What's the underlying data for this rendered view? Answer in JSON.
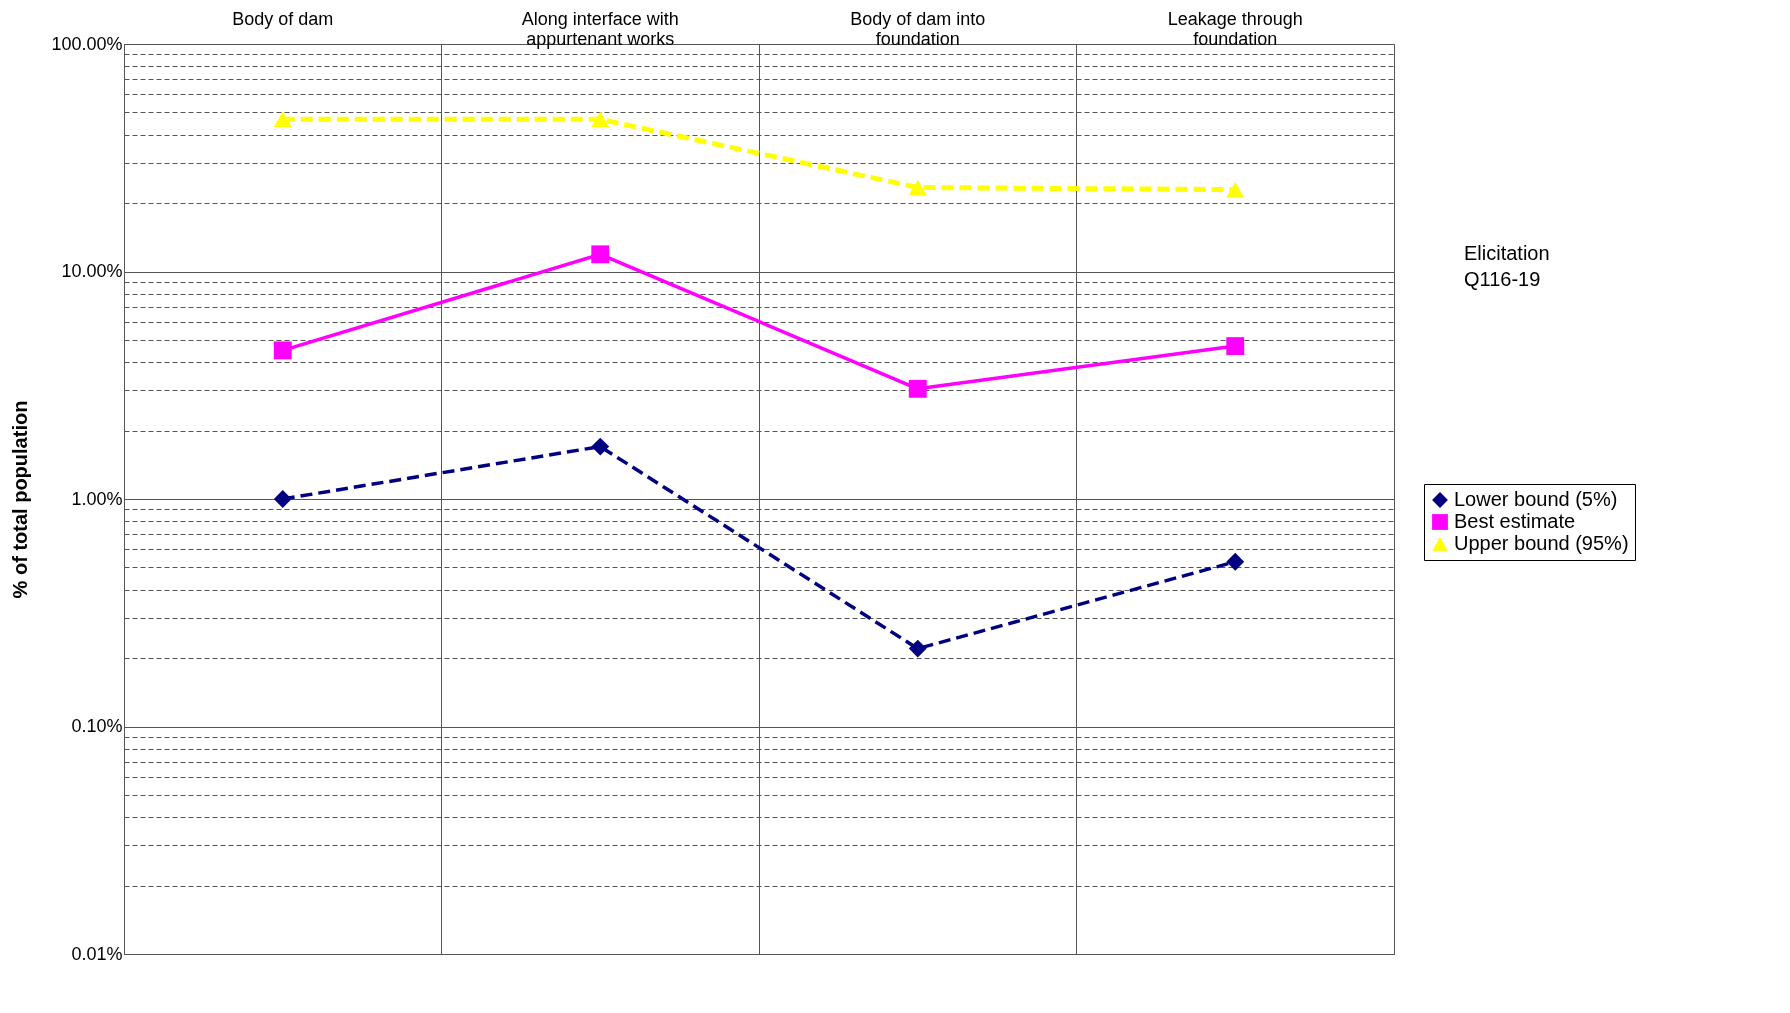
{
  "chart_data": {
    "type": "line",
    "ylabel": "% of total population",
    "categories": [
      "Body of dam",
      "Along interface with appurtenant works",
      "Body of dam into foundation",
      "Leakage through foundation"
    ],
    "series": [
      {
        "name": "Lower bound (5%)",
        "color": "#000080",
        "marker": "diamond",
        "line_style": "dashed",
        "values": [
          1.0,
          1.7,
          0.22,
          0.53
        ]
      },
      {
        "name": "Best estimate",
        "color": "#ff00ff",
        "marker": "square",
        "line_style": "solid",
        "values": [
          4.5,
          11.9,
          3.05,
          4.7
        ]
      },
      {
        "name": "Upper bound (95%)",
        "color": "#ffff00",
        "marker": "triangle",
        "line_style": "dashed",
        "values": [
          46.7,
          46.7,
          23.4,
          22.9
        ]
      }
    ],
    "log": true,
    "ylim": [
      0.01,
      100
    ],
    "yticks": [
      {
        "value": 0.01,
        "label": "0.01%"
      },
      {
        "value": 0.02,
        "label": null
      },
      {
        "value": 0.03,
        "label": null
      },
      {
        "value": 0.04,
        "label": null
      },
      {
        "value": 0.05,
        "label": null
      },
      {
        "value": 0.06,
        "label": null
      },
      {
        "value": 0.07,
        "label": null
      },
      {
        "value": 0.08,
        "label": null
      },
      {
        "value": 0.09,
        "label": null
      },
      {
        "value": 0.1,
        "label": "0.10%"
      },
      {
        "value": 0.2,
        "label": null
      },
      {
        "value": 0.3,
        "label": null
      },
      {
        "value": 0.4,
        "label": null
      },
      {
        "value": 0.5,
        "label": null
      },
      {
        "value": 0.6,
        "label": null
      },
      {
        "value": 0.7,
        "label": null
      },
      {
        "value": 0.8,
        "label": null
      },
      {
        "value": 0.9,
        "label": null
      },
      {
        "value": 1,
        "label": "1.00%"
      },
      {
        "value": 2,
        "label": null
      },
      {
        "value": 3,
        "label": null
      },
      {
        "value": 4,
        "label": null
      },
      {
        "value": 5,
        "label": null
      },
      {
        "value": 6,
        "label": null
      },
      {
        "value": 7,
        "label": null
      },
      {
        "value": 8,
        "label": null
      },
      {
        "value": 9,
        "label": null
      },
      {
        "value": 10,
        "label": "10.00%"
      },
      {
        "value": 20,
        "label": null
      },
      {
        "value": 30,
        "label": null
      },
      {
        "value": 40,
        "label": null
      },
      {
        "value": 50,
        "label": null
      },
      {
        "value": 60,
        "label": null
      },
      {
        "value": 70,
        "label": null
      },
      {
        "value": 80,
        "label": null
      },
      {
        "value": 90,
        "label": null
      },
      {
        "value": 100,
        "label": "100.00%"
      }
    ],
    "grid": true,
    "legend": "right",
    "annotations": [
      "Elicitation Q116-19"
    ]
  }
}
